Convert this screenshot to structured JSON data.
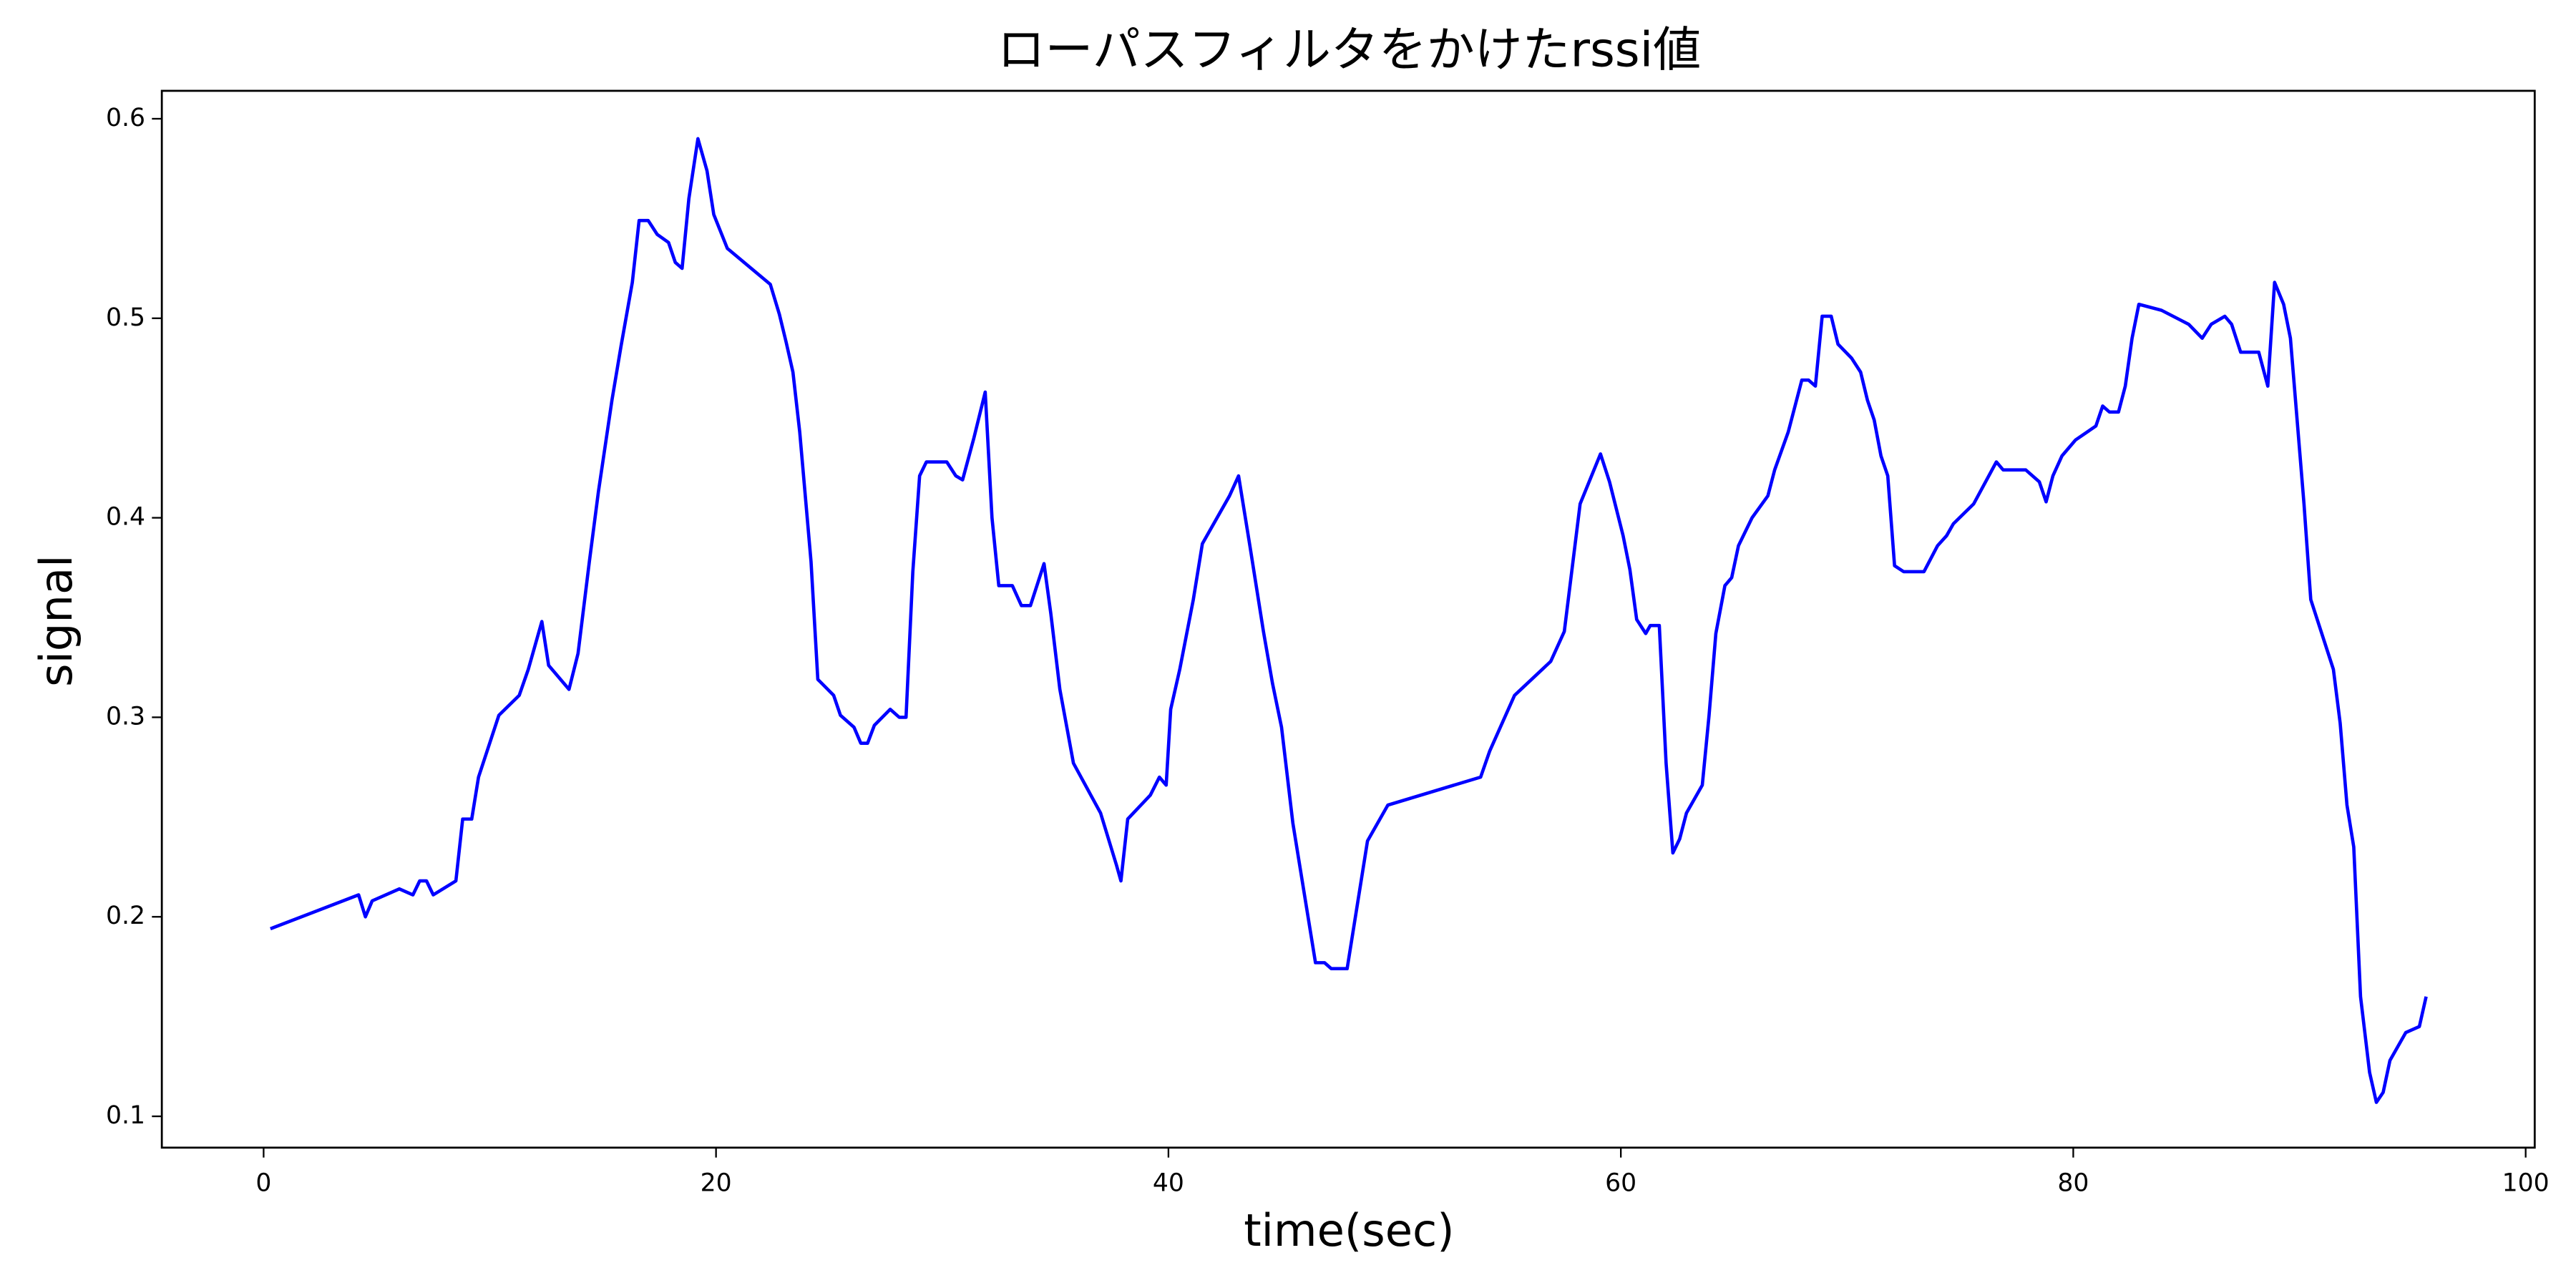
{
  "chart_data": {
    "type": "line",
    "title": "ローパスフィルタをかけたrssi値",
    "xlabel": "time(sec)",
    "ylabel": "signal",
    "xlim": [
      -4.5,
      100.4
    ],
    "ylim": [
      0.0843,
      0.614
    ],
    "xticks": [
      0,
      20,
      40,
      60,
      80,
      100
    ],
    "yticks": [
      0.1,
      0.2,
      0.3,
      0.4,
      0.5,
      0.6
    ],
    "x": [
      0.3,
      4.2,
      4.5,
      4.8,
      6.0,
      6.6,
      6.9,
      7.2,
      7.5,
      8.5,
      8.8,
      9.2,
      9.5,
      10.4,
      11.3,
      11.7,
      12.3,
      12.6,
      13.5,
      13.9,
      14.4,
      14.8,
      15.4,
      15.8,
      16.3,
      16.6,
      17.0,
      17.4,
      17.9,
      18.2,
      18.5,
      18.8,
      19.2,
      19.6,
      19.9,
      20.5,
      22.4,
      22.8,
      23.1,
      23.4,
      23.7,
      24.2,
      24.5,
      25.2,
      25.5,
      26.1,
      26.4,
      26.7,
      27.0,
      27.7,
      28.1,
      28.4,
      28.7,
      29.0,
      29.3,
      30.2,
      30.6,
      30.9,
      31.4,
      31.9,
      32.2,
      32.5,
      33.1,
      33.5,
      33.9,
      34.5,
      34.8,
      35.2,
      35.8,
      37.0,
      37.7,
      37.9,
      38.2,
      39.2,
      39.6,
      39.9,
      40.1,
      40.5,
      41.1,
      41.5,
      42.7,
      43.1,
      43.6,
      44.2,
      44.6,
      45.0,
      45.5,
      46.5,
      46.9,
      47.2,
      47.9,
      48.8,
      49.7,
      53.8,
      54.2,
      55.3,
      56.9,
      57.5,
      58.2,
      59.1,
      59.5,
      60.1,
      60.4,
      60.7,
      61.1,
      61.3,
      61.7,
      62.0,
      62.3,
      62.6,
      62.9,
      63.6,
      63.9,
      64.2,
      64.6,
      64.9,
      65.2,
      65.8,
      66.5,
      66.8,
      67.4,
      68.0,
      68.3,
      68.6,
      68.9,
      69.3,
      69.6,
      70.2,
      70.6,
      70.9,
      71.2,
      71.5,
      71.8,
      72.1,
      72.5,
      73.4,
      74.0,
      74.4,
      74.7,
      75.6,
      76.6,
      76.9,
      77.9,
      78.5,
      78.8,
      79.1,
      79.5,
      80.1,
      81.0,
      81.3,
      81.6,
      82.0,
      82.3,
      82.6,
      82.9,
      83.9,
      85.1,
      85.7,
      86.1,
      86.7,
      87.0,
      87.4,
      88.2,
      88.6,
      88.9,
      89.3,
      89.6,
      90.2,
      90.5,
      91.5,
      91.8,
      92.1,
      92.4,
      92.7,
      93.1,
      93.4,
      93.7,
      94.0,
      94.7,
      95.3,
      95.6
    ],
    "series": [
      {
        "color": "#0000ff",
        "values": [
          0.194,
          0.211,
          0.2,
          0.208,
          0.214,
          0.211,
          0.218,
          0.218,
          0.211,
          0.218,
          0.249,
          0.249,
          0.27,
          0.301,
          0.311,
          0.324,
          0.348,
          0.326,
          0.314,
          0.332,
          0.378,
          0.413,
          0.459,
          0.486,
          0.518,
          0.549,
          0.549,
          0.542,
          0.538,
          0.528,
          0.525,
          0.56,
          0.59,
          0.574,
          0.552,
          0.535,
          0.517,
          0.502,
          0.488,
          0.473,
          0.443,
          0.378,
          0.319,
          0.311,
          0.301,
          0.295,
          0.287,
          0.287,
          0.296,
          0.304,
          0.3,
          0.3,
          0.373,
          0.421,
          0.428,
          0.428,
          0.421,
          0.419,
          0.44,
          0.463,
          0.4,
          0.366,
          0.366,
          0.356,
          0.356,
          0.377,
          0.352,
          0.314,
          0.277,
          0.252,
          0.226,
          0.218,
          0.249,
          0.261,
          0.27,
          0.266,
          0.304,
          0.324,
          0.359,
          0.387,
          0.411,
          0.421,
          0.386,
          0.343,
          0.317,
          0.295,
          0.247,
          0.177,
          0.177,
          0.174,
          0.174,
          0.238,
          0.256,
          0.27,
          0.283,
          0.311,
          0.328,
          0.343,
          0.407,
          0.432,
          0.418,
          0.391,
          0.374,
          0.349,
          0.342,
          0.346,
          0.346,
          0.277,
          0.232,
          0.239,
          0.252,
          0.266,
          0.301,
          0.342,
          0.366,
          0.37,
          0.386,
          0.4,
          0.411,
          0.424,
          0.443,
          0.469,
          0.469,
          0.466,
          0.501,
          0.501,
          0.487,
          0.48,
          0.473,
          0.459,
          0.449,
          0.431,
          0.421,
          0.376,
          0.373,
          0.373,
          0.386,
          0.391,
          0.397,
          0.407,
          0.428,
          0.424,
          0.424,
          0.418,
          0.408,
          0.421,
          0.431,
          0.439,
          0.446,
          0.456,
          0.453,
          0.453,
          0.466,
          0.49,
          0.507,
          0.504,
          0.497,
          0.49,
          0.497,
          0.501,
          0.497,
          0.483,
          0.483,
          0.466,
          0.518,
          0.507,
          0.49,
          0.407,
          0.359,
          0.324,
          0.297,
          0.256,
          0.235,
          0.16,
          0.122,
          0.107,
          0.112,
          0.128,
          0.142,
          0.145,
          0.16
        ]
      }
    ]
  }
}
